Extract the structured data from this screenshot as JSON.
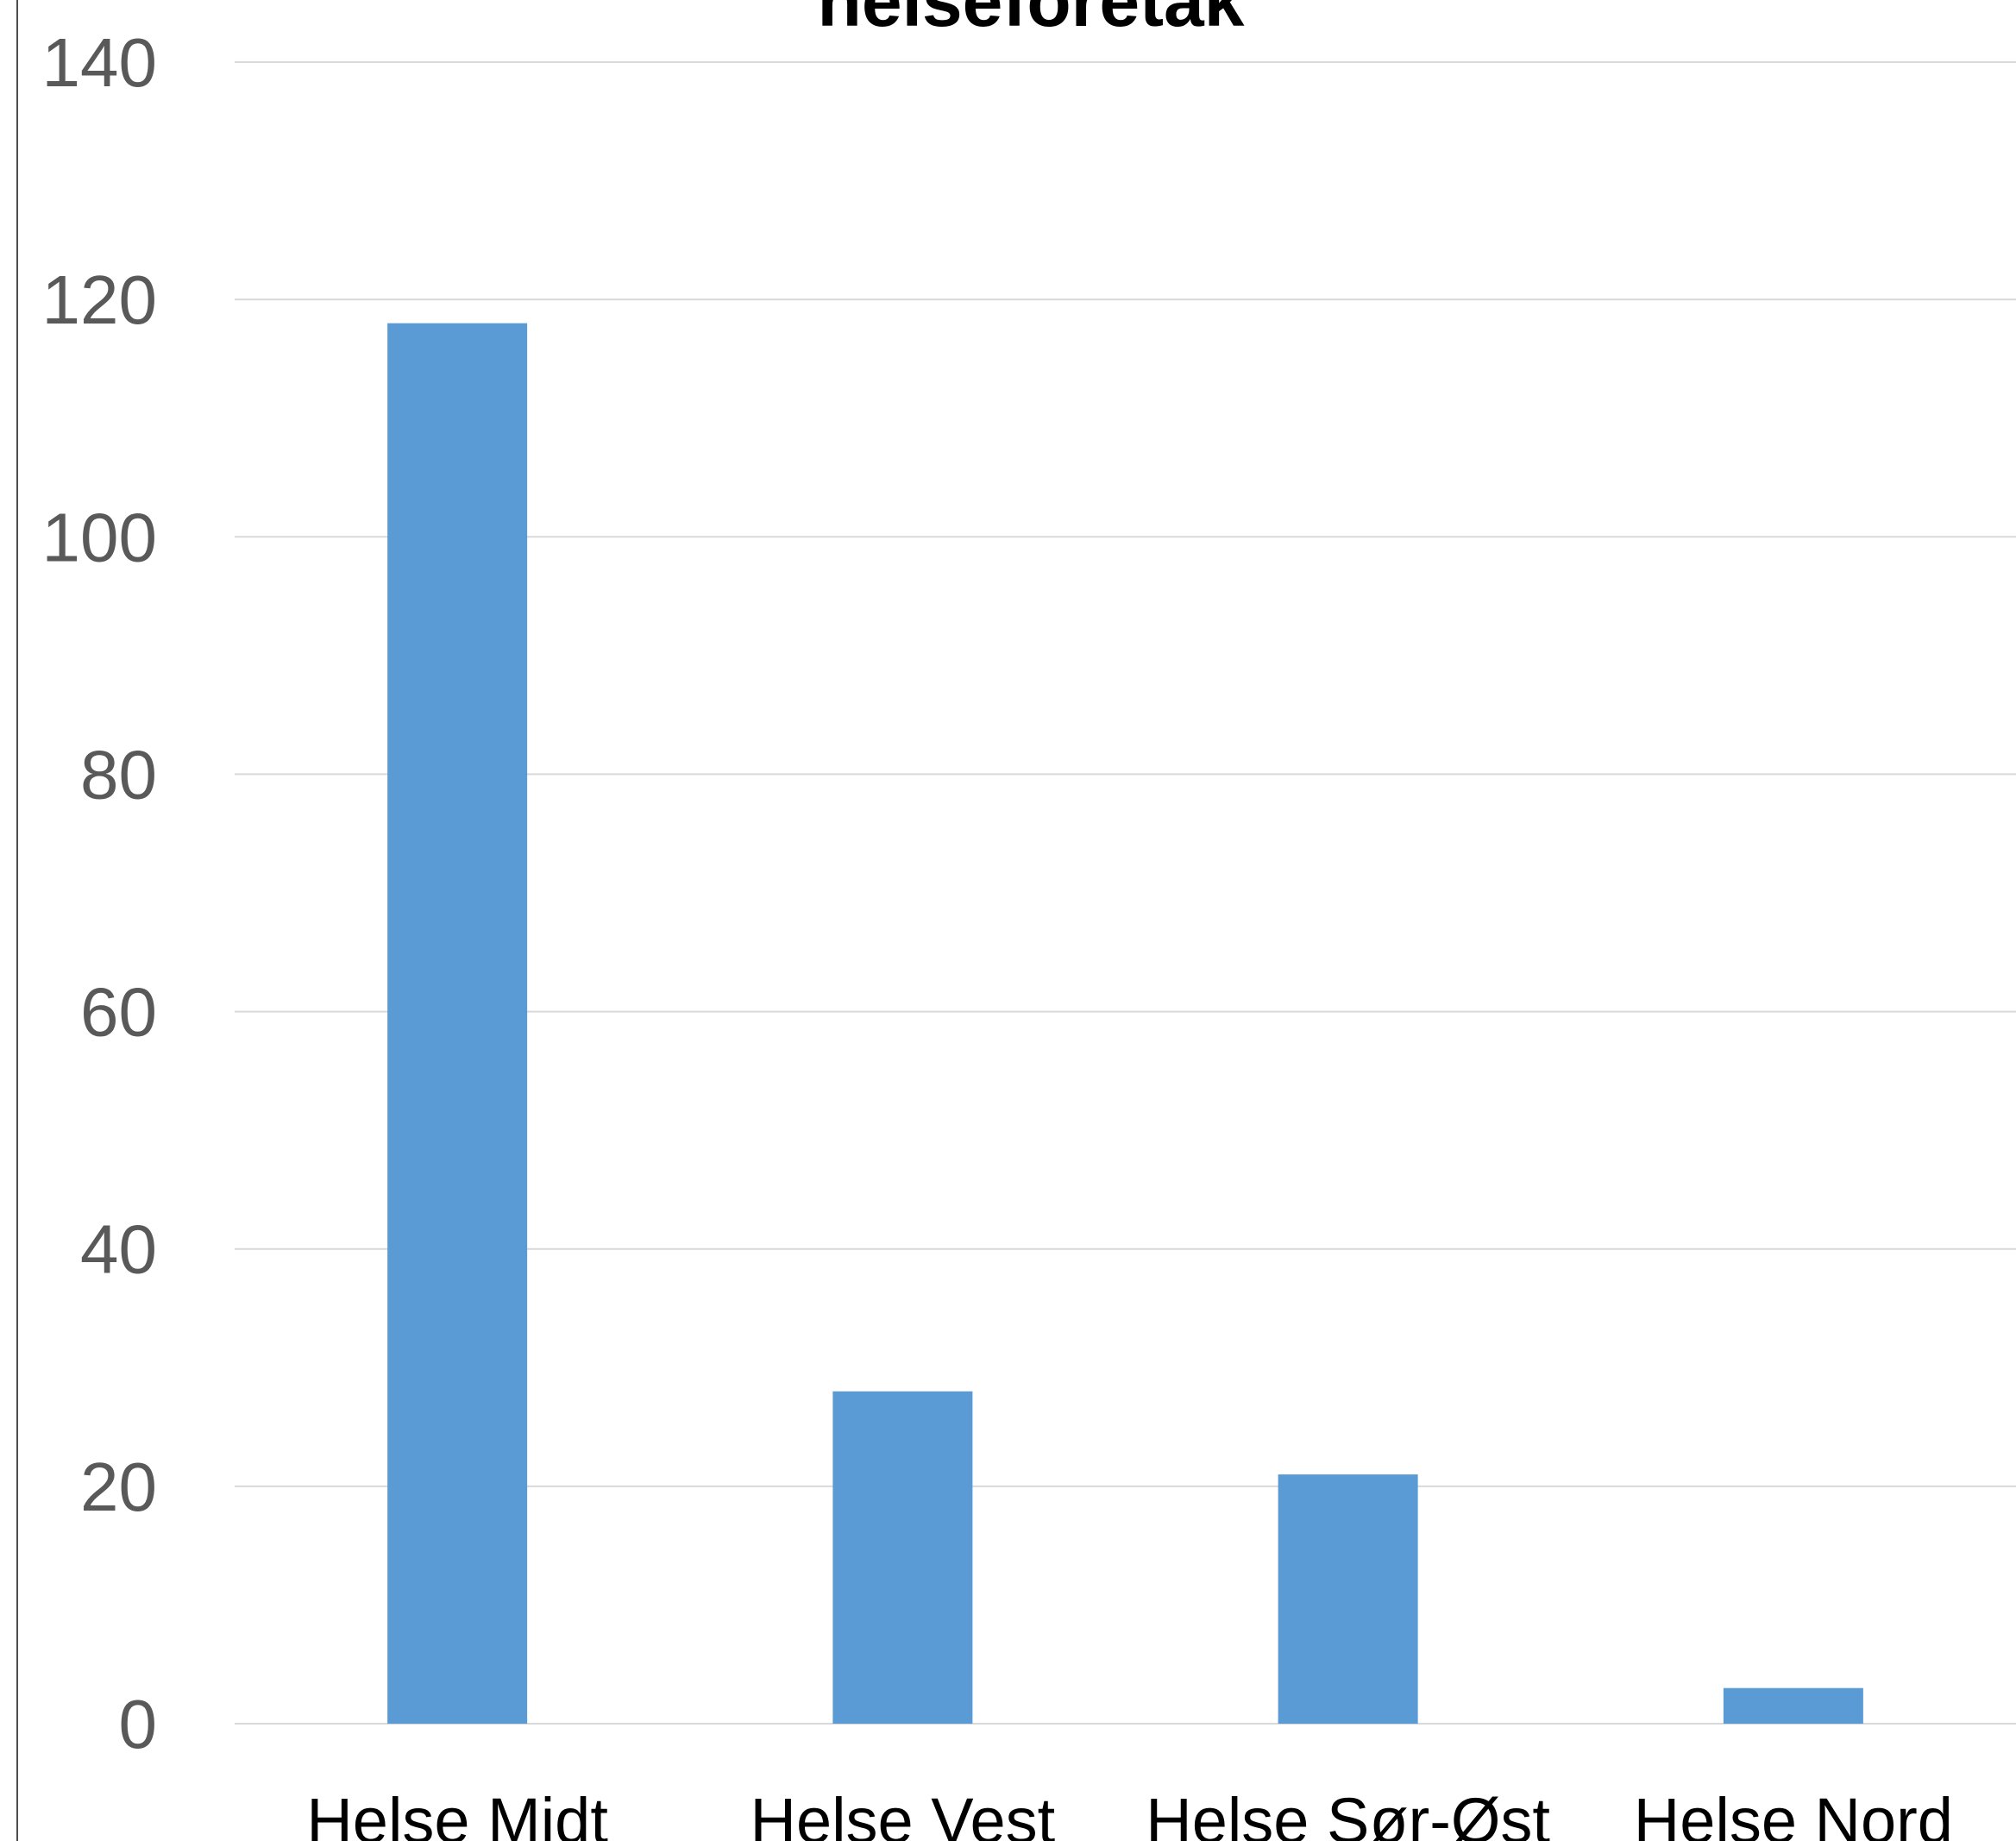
{
  "chart_data": {
    "type": "bar",
    "title": "helseforetak",
    "categories": [
      "Helse Midt",
      "Helse Vest",
      "Helse Sør-Øst",
      "Helse Nord"
    ],
    "values": [
      118,
      28,
      21,
      3
    ],
    "ylim": [
      0,
      140
    ],
    "yticks": [
      "0",
      "20",
      "40",
      "60",
      "80",
      "100",
      "120",
      "140"
    ],
    "xlabel": "",
    "ylabel": "",
    "grid": true,
    "bar_color": "#5b9bd5",
    "grid_color": "#d9d9d9"
  }
}
